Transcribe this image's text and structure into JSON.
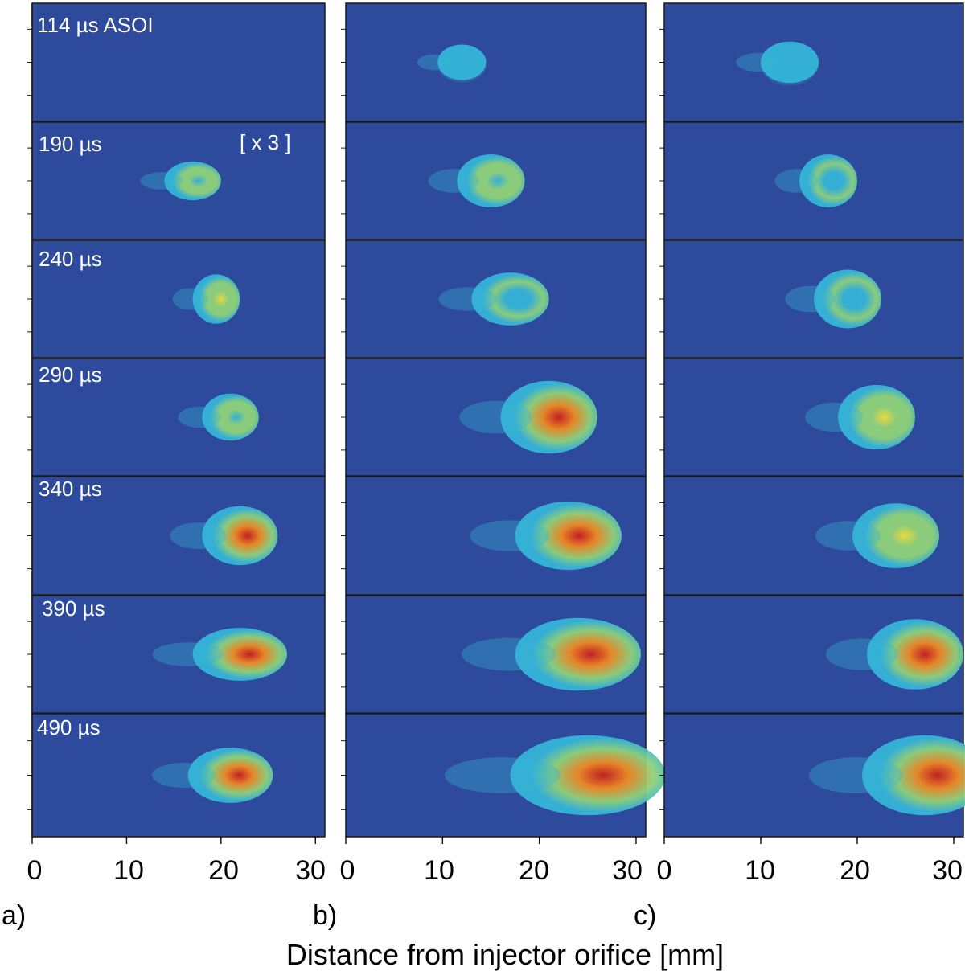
{
  "figure": {
    "frame_times": [
      "114 µs ASOI",
      "190 µs",
      "240 µs",
      "290 µs",
      "340 µs",
      "390 µs",
      "490 µs"
    ],
    "scale_note": "[ x 3 ]",
    "panels": [
      {
        "letter": "a)"
      },
      {
        "letter": "b)"
      },
      {
        "letter": "c)"
      }
    ],
    "x_ticks": [
      "0",
      "10",
      "20",
      "30"
    ],
    "x_axis_title": "Distance from injector orifice [mm]",
    "colors": {
      "background": "#2e4a9c",
      "cyan": "#35b4d8",
      "green": "#8fd27a",
      "yellow": "#f2e03c",
      "orange": "#f08a22",
      "red": "#c81e1e"
    },
    "x_range_mm": [
      0,
      31
    ],
    "plumes": {
      "a": [
        {
          "x": 10,
          "y": 0,
          "w": 0,
          "h": 0,
          "level": 0
        },
        {
          "x": 17,
          "y": 0,
          "w": 6,
          "h": 0.33,
          "level": 0.55
        },
        {
          "x": 19.5,
          "y": 0,
          "w": 5,
          "h": 0.42,
          "level": 0.65
        },
        {
          "x": 21,
          "y": 0,
          "w": 6,
          "h": 0.4,
          "level": 0.55
        },
        {
          "x": 22,
          "y": 0,
          "w": 8,
          "h": 0.5,
          "level": 0.85
        },
        {
          "x": 22,
          "y": 0,
          "w": 10,
          "h": 0.45,
          "level": 1.0
        },
        {
          "x": 21,
          "y": 0,
          "w": 9,
          "h": 0.45,
          "level": 0.82
        }
      ],
      "b": [
        {
          "x": 12,
          "y": 0,
          "w": 5,
          "h": 0.3,
          "level": 0.15
        },
        {
          "x": 15,
          "y": 0,
          "w": 7,
          "h": 0.45,
          "level": 0.55
        },
        {
          "x": 17,
          "y": 0,
          "w": 8,
          "h": 0.45,
          "level": 0.45
        },
        {
          "x": 21,
          "y": 0,
          "w": 10,
          "h": 0.62,
          "level": 0.85
        },
        {
          "x": 23,
          "y": 0,
          "w": 11,
          "h": 0.58,
          "level": 0.85
        },
        {
          "x": 24,
          "y": 0,
          "w": 13,
          "h": 0.62,
          "level": 0.95
        },
        {
          "x": 25,
          "y": 0,
          "w": 16,
          "h": 0.65,
          "level": 1.0
        }
      ],
      "c": [
        {
          "x": 13,
          "y": 0,
          "w": 6,
          "h": 0.35,
          "level": 0.1
        },
        {
          "x": 17,
          "y": 0,
          "w": 6,
          "h": 0.45,
          "level": 0.4
        },
        {
          "x": 19,
          "y": 0,
          "w": 7,
          "h": 0.5,
          "level": 0.4
        },
        {
          "x": 22,
          "y": 0,
          "w": 8,
          "h": 0.55,
          "level": 0.6
        },
        {
          "x": 24,
          "y": 0,
          "w": 9,
          "h": 0.55,
          "level": 0.7
        },
        {
          "x": 26,
          "y": 0,
          "w": 10,
          "h": 0.6,
          "level": 0.85
        },
        {
          "x": 27,
          "y": 0,
          "w": 13,
          "h": 0.65,
          "level": 1.0
        }
      ]
    }
  }
}
